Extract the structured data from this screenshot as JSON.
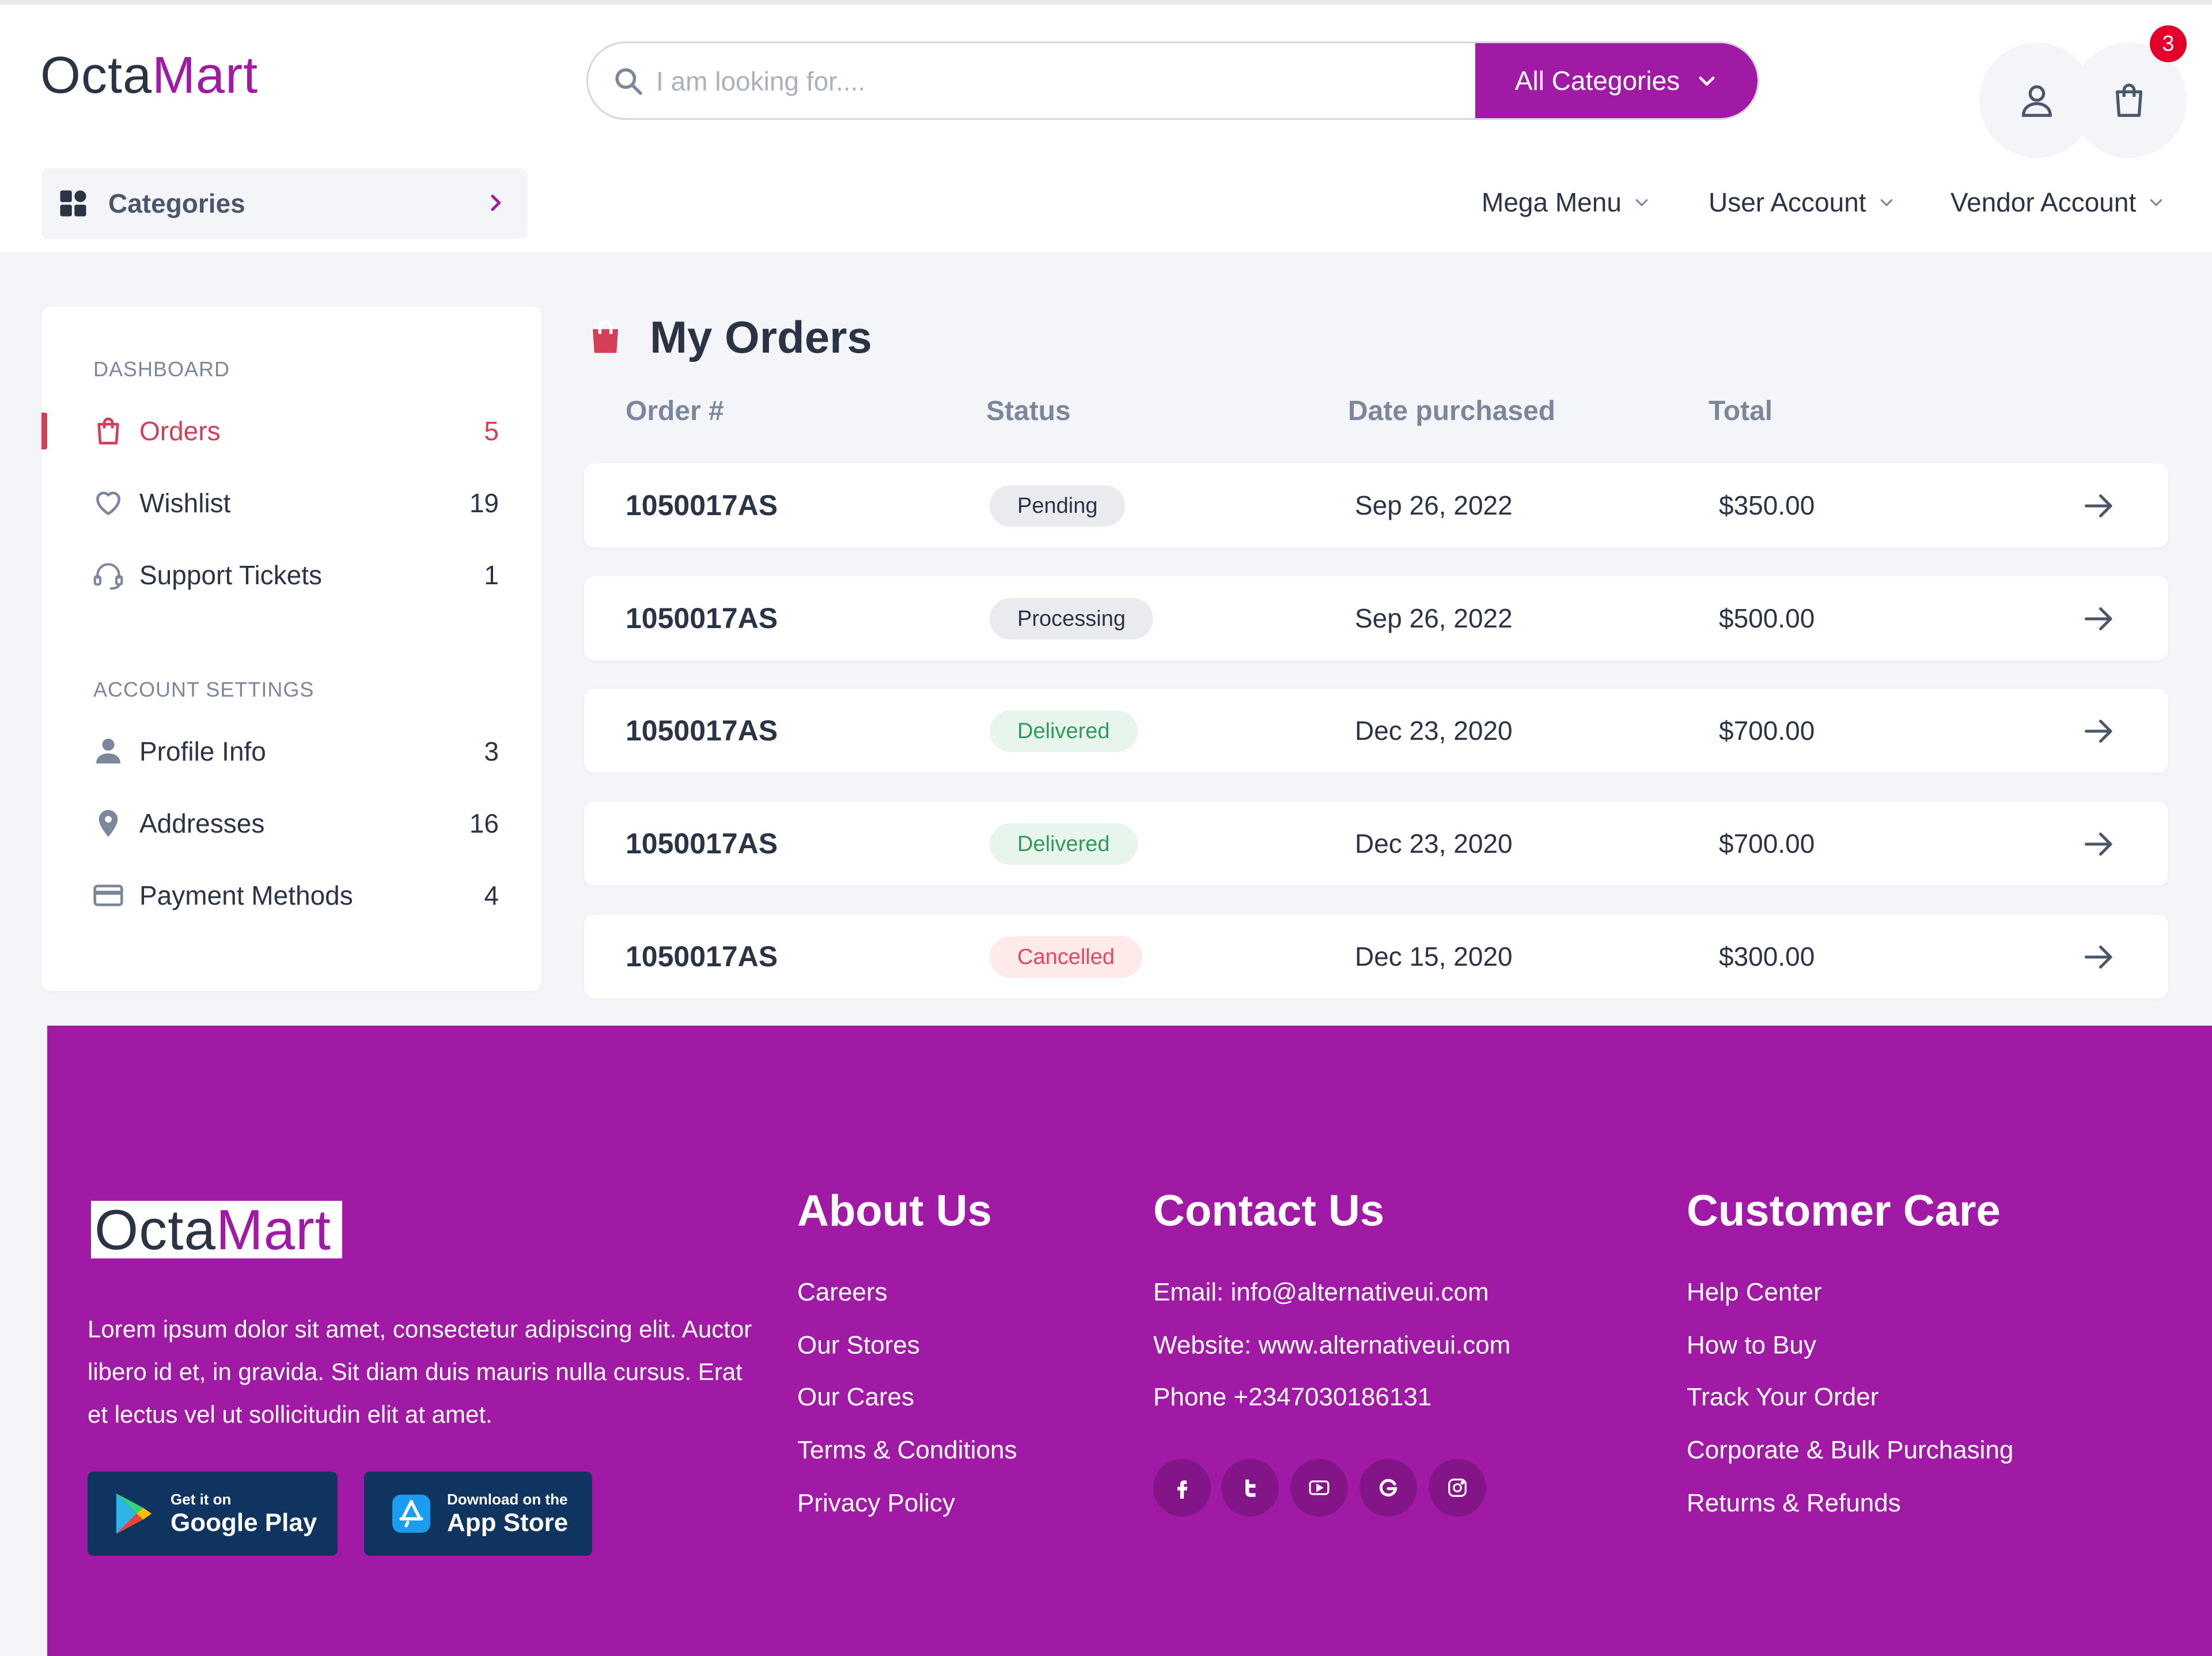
{
  "header": {
    "logo_part1": "Octa",
    "logo_part2": "Mart",
    "search_placeholder": "I am looking for....",
    "category_button": "All Categories",
    "cart_count": "3",
    "categories_label": "Categories",
    "nav": [
      "Mega Menu",
      "User Account",
      "Vendor Account"
    ]
  },
  "sidebar": {
    "dashboard_title": "DASHBOARD",
    "dashboard_items": [
      {
        "label": "Orders",
        "count": "5",
        "icon": "shopping-bag-icon"
      },
      {
        "label": "Wishlist",
        "count": "19",
        "icon": "heart-icon"
      },
      {
        "label": "Support Tickets",
        "count": "1",
        "icon": "headset-icon"
      }
    ],
    "account_title": "ACCOUNT SETTINGS",
    "account_items": [
      {
        "label": "Profile Info",
        "count": "3",
        "icon": "person-icon"
      },
      {
        "label": "Addresses",
        "count": "16",
        "icon": "location-pin-icon"
      },
      {
        "label": "Payment Methods",
        "count": "4",
        "icon": "credit-card-icon"
      }
    ]
  },
  "main": {
    "title": "My Orders",
    "columns": [
      "Order #",
      "Status",
      "Date purchased",
      "Total"
    ],
    "orders": [
      {
        "id": "1050017AS",
        "status": "Pending",
        "date": "Sep 26, 2022",
        "total": "$350.00"
      },
      {
        "id": "1050017AS",
        "status": "Processing",
        "date": "Sep 26, 2022",
        "total": "$500.00"
      },
      {
        "id": "1050017AS",
        "status": "Delivered",
        "date": "Dec 23, 2020",
        "total": "$700.00"
      },
      {
        "id": "1050017AS",
        "status": "Delivered",
        "date": "Dec 23, 2020",
        "total": "$700.00"
      },
      {
        "id": "1050017AS",
        "status": "Cancelled",
        "date": "Dec 15, 2020",
        "total": "$300.00"
      }
    ]
  },
  "footer": {
    "logo_part1": "Octa",
    "logo_part2": "Mart",
    "description": "Lorem ipsum dolor sit amet, consectetur adipiscing elit. Auctor libero id et, in gravida. Sit diam duis mauris nulla cursus. Erat et lectus vel ut sollicitudin elit at amet.",
    "google_play": {
      "small": "Get it on",
      "big": "Google Play"
    },
    "app_store": {
      "small": "Download on the",
      "big": "App Store"
    },
    "about": {
      "title": "About Us",
      "links": [
        "Careers",
        "Our Stores",
        "Our Cares",
        "Terms & Conditions",
        "Privacy Policy"
      ]
    },
    "contact": {
      "title": "Contact Us",
      "lines": [
        "Email: info@alternativeui.com",
        "Website: www.alternativeui.com",
        "Phone +2347030186131"
      ]
    },
    "care": {
      "title": "Customer Care",
      "links": [
        "Help Center",
        "How to Buy",
        "Track Your Order",
        "Corporate & Bulk Purchasing",
        "Returns & Refunds"
      ]
    },
    "social_icons": [
      "facebook-icon",
      "twitter-icon",
      "youtube-icon",
      "google-icon",
      "instagram-icon"
    ]
  },
  "colors": {
    "brand": "#a11aa6",
    "active": "#d23f57",
    "badge": "#e3002b",
    "text": "#2b3445",
    "muted": "#7d879c"
  }
}
